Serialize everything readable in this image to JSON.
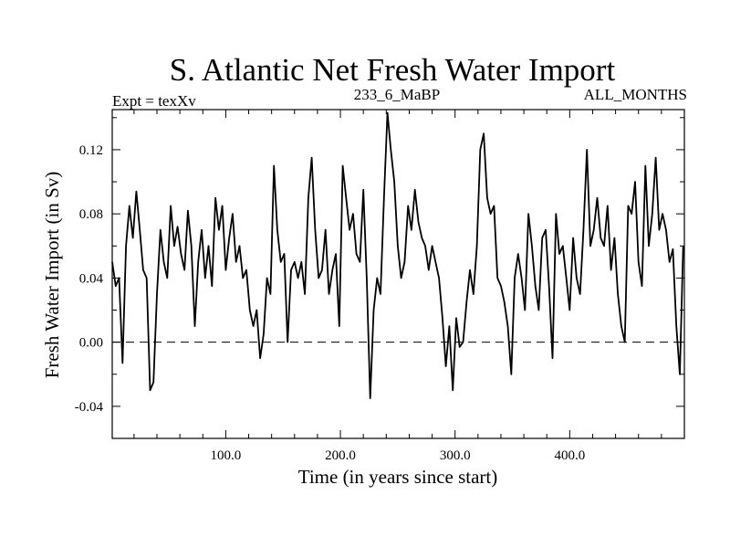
{
  "chart_data": {
    "type": "line",
    "title": "S. Atlantic Net Fresh Water Import",
    "header": {
      "left": "Expt = texXv",
      "center": "233_6_MaBP",
      "right": "ALL_MONTHS"
    },
    "xlabel": "Time (in years since start)",
    "ylabel": "Fresh Water Import (in Sv)",
    "xlim": [
      1,
      500
    ],
    "ylim": [
      -0.06,
      0.145
    ],
    "xticks": [
      100,
      200,
      300,
      400
    ],
    "xtick_labels": [
      "100.0",
      "200.0",
      "300.0",
      "400.0"
    ],
    "yticks": [
      -0.04,
      0.0,
      0.04,
      0.08,
      0.12
    ],
    "ytick_labels": [
      "-0.04",
      "0.00",
      "0.04",
      "0.08",
      "0.12"
    ],
    "reference_line": {
      "y": 0.0,
      "style": "dashed"
    },
    "series": [
      {
        "name": "Net Fresh Water Import",
        "x": [
          1,
          4,
          7,
          10,
          13,
          16,
          19,
          22,
          25,
          28,
          31,
          34,
          37,
          40,
          43,
          46,
          49,
          52,
          55,
          58,
          61,
          64,
          67,
          70,
          73,
          76,
          79,
          82,
          85,
          88,
          91,
          94,
          97,
          100,
          103,
          106,
          109,
          112,
          115,
          118,
          121,
          124,
          127,
          130,
          133,
          136,
          139,
          142,
          145,
          148,
          151,
          154,
          157,
          160,
          163,
          166,
          169,
          172,
          175,
          178,
          181,
          184,
          187,
          190,
          193,
          196,
          199,
          202,
          205,
          208,
          211,
          214,
          217,
          220,
          223,
          226,
          229,
          232,
          235,
          238,
          241,
          244,
          247,
          250,
          253,
          256,
          259,
          262,
          265,
          268,
          271,
          274,
          277,
          280,
          283,
          286,
          289,
          292,
          295,
          298,
          301,
          304,
          307,
          310,
          313,
          316,
          319,
          322,
          325,
          328,
          331,
          334,
          337,
          340,
          343,
          346,
          349,
          352,
          355,
          358,
          361,
          364,
          367,
          370,
          373,
          376,
          379,
          382,
          385,
          388,
          391,
          394,
          397,
          400,
          403,
          406,
          409,
          412,
          415,
          418,
          421,
          424,
          427,
          430,
          433,
          436,
          439,
          442,
          445,
          448,
          451,
          454,
          457,
          460,
          463,
          466,
          469,
          472,
          475,
          478,
          481,
          484,
          487,
          490,
          493,
          496,
          499
        ],
        "values": [
          0.05,
          0.035,
          0.04,
          -0.013,
          0.06,
          0.085,
          0.065,
          0.094,
          0.07,
          0.045,
          0.04,
          -0.03,
          -0.025,
          0.03,
          0.07,
          0.05,
          0.04,
          0.085,
          0.06,
          0.072,
          0.055,
          0.045,
          0.082,
          0.06,
          0.01,
          0.05,
          0.07,
          0.04,
          0.06,
          0.035,
          0.09,
          0.07,
          0.085,
          0.045,
          0.065,
          0.08,
          0.05,
          0.06,
          0.04,
          0.045,
          0.02,
          0.01,
          0.02,
          -0.01,
          0.005,
          0.04,
          0.03,
          0.11,
          0.07,
          0.05,
          0.055,
          0.0,
          0.045,
          0.05,
          0.04,
          0.05,
          0.03,
          0.09,
          0.115,
          0.07,
          0.04,
          0.045,
          0.07,
          0.03,
          0.045,
          0.055,
          0.01,
          0.11,
          0.09,
          0.07,
          0.08,
          0.055,
          0.05,
          0.095,
          0.04,
          -0.035,
          0.02,
          0.04,
          0.03,
          0.09,
          0.143,
          0.12,
          0.1,
          0.06,
          0.04,
          0.05,
          0.085,
          0.07,
          0.095,
          0.075,
          0.065,
          0.06,
          0.045,
          0.06,
          0.05,
          0.04,
          0.015,
          -0.015,
          0.01,
          -0.03,
          0.015,
          -0.003,
          0.0,
          0.025,
          0.045,
          0.03,
          0.06,
          0.12,
          0.13,
          0.09,
          0.08,
          0.085,
          0.04,
          0.035,
          0.025,
          0.01,
          -0.02,
          0.04,
          0.055,
          0.04,
          0.02,
          0.08,
          0.06,
          0.035,
          0.02,
          0.065,
          0.07,
          0.035,
          -0.01,
          0.08,
          0.055,
          0.06,
          0.04,
          0.02,
          0.065,
          0.04,
          0.03,
          0.07,
          0.12,
          0.06,
          0.07,
          0.09,
          0.065,
          0.06,
          0.085,
          0.045,
          0.065,
          0.03,
          0.01,
          0.0,
          0.085,
          0.08,
          0.1,
          0.05,
          0.035,
          0.11,
          0.06,
          0.08,
          0.115,
          0.07,
          0.08,
          0.07,
          0.05,
          0.058,
          0.01,
          -0.02,
          0.06
        ]
      }
    ]
  }
}
